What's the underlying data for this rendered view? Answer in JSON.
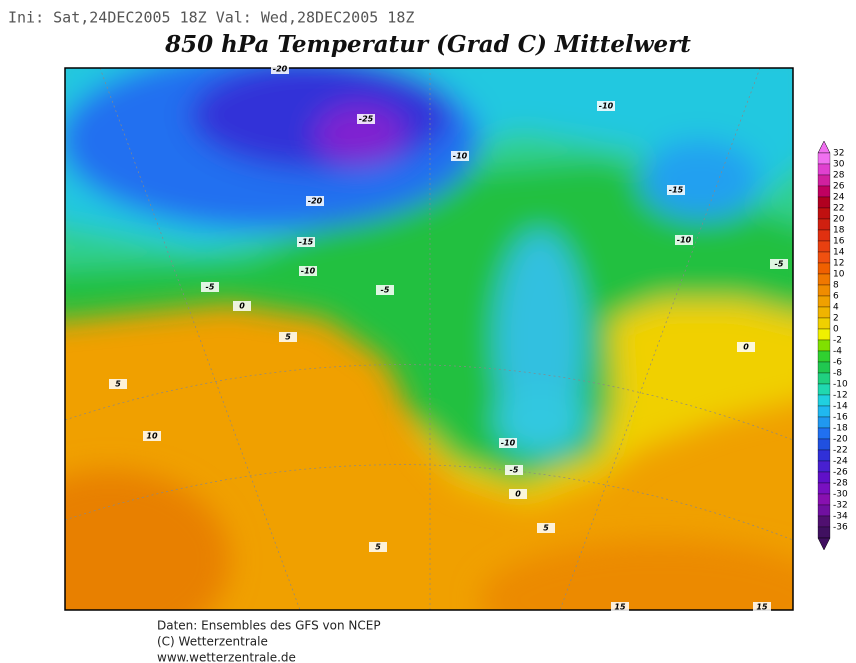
{
  "header": {
    "run": "Ini: Sat,24DEC2005 18Z Val: Wed,28DEC2005 18Z",
    "title": "850 hPa Temperatur (Grad C) Mittelwert"
  },
  "colorbar": {
    "ticks": [
      32,
      30,
      28,
      26,
      24,
      22,
      20,
      18,
      16,
      14,
      12,
      10,
      8,
      6,
      4,
      2,
      0,
      -2,
      -4,
      -6,
      -8,
      -10,
      -12,
      -14,
      -16,
      -18,
      -20,
      -22,
      -24,
      -26,
      -28,
      -30,
      -32,
      -34,
      -36
    ],
    "colors": [
      "#f070f0",
      "#e040d0",
      "#d020a0",
      "#c00060",
      "#b00020",
      "#c01010",
      "#d02010",
      "#e03010",
      "#e84010",
      "#f05010",
      "#f06000",
      "#f07800",
      "#f08c00",
      "#f0a000",
      "#f0b400",
      "#f0d000",
      "#f0f000",
      "#80e000",
      "#30d030",
      "#20c850",
      "#20d080",
      "#20d8b0",
      "#20d0e0",
      "#20b8f0",
      "#2098f0",
      "#2070f0",
      "#2050e0",
      "#3030d8",
      "#4820d0",
      "#6010c8",
      "#7810c0",
      "#8810b0",
      "#7010a0",
      "#501070",
      "#401060"
    ]
  },
  "contour_labels": [
    -20,
    -25,
    -10,
    -10,
    -15,
    -20,
    -15,
    -10,
    -5,
    -10,
    -5,
    -5,
    0,
    5,
    0,
    5,
    10,
    -10,
    -5,
    0,
    5,
    5,
    15,
    15
  ],
  "footer": [
    "Daten: Ensembles des GFS von NCEP",
    "(C) Wetterzentrale",
    "www.wetterzentrale.de"
  ]
}
